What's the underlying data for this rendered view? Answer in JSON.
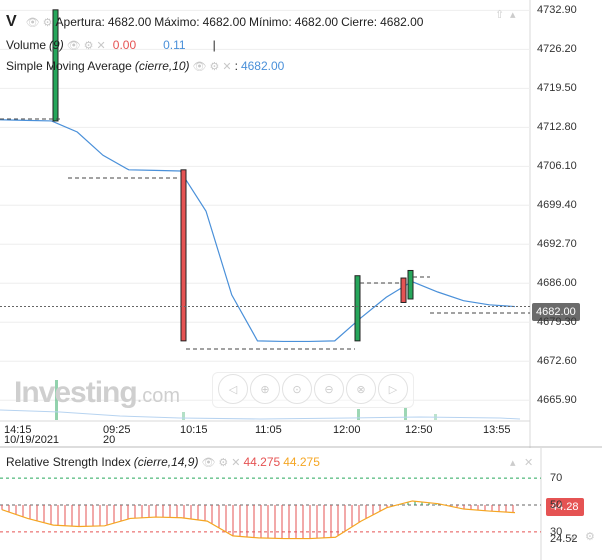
{
  "header": {
    "symbol": "V",
    "ohlc": [
      {
        "label": "Apertura:",
        "value": "4682.00"
      },
      {
        "label": "Máximo:",
        "value": "4682.00"
      },
      {
        "label": "Mínimo:",
        "value": "4682.00"
      },
      {
        "label": "Cierre:",
        "value": "4682.00"
      }
    ]
  },
  "legend": {
    "volume": {
      "name": "Volume",
      "param": "(9)",
      "value1": "0.00",
      "value2": "0.11",
      "sep": "|"
    },
    "sma": {
      "name": "Simple Moving Average",
      "param": "(cierre,10)",
      "sep": ":",
      "value": "4682.00"
    }
  },
  "price_axis": {
    "ticks": [
      "4732.90",
      "4726.20",
      "4719.50",
      "4712.80",
      "4706.10",
      "4699.40",
      "4692.70",
      "4686.00",
      "4679.30",
      "4672.60",
      "4665.90"
    ],
    "current_price": "4682.00"
  },
  "time_axis": {
    "labels": [
      {
        "time": "14:15",
        "date": "10/19/2021"
      },
      {
        "time": "09:25",
        "date": "20"
      },
      {
        "time": "10:15",
        "date": ""
      },
      {
        "time": "11:05",
        "date": ""
      },
      {
        "time": "12:00",
        "date": ""
      },
      {
        "time": "12:50",
        "date": ""
      },
      {
        "time": "13:55",
        "date": ""
      }
    ]
  },
  "watermark": {
    "brand": "Investing",
    "suffix": ".com"
  },
  "rsi": {
    "name": "Relative Strength Index",
    "param": "(cierre,14,9)",
    "value1": "44.275",
    "value2": "44.275",
    "ticks": [
      "70",
      "50",
      "30",
      "24.52"
    ],
    "current": "44.28"
  },
  "nav_buttons": [
    {
      "name": "scroll-left-icon",
      "glyph": "◁"
    },
    {
      "name": "zoom-in-icon",
      "glyph": "⊕"
    },
    {
      "name": "zoom-reset-icon",
      "glyph": "⊙"
    },
    {
      "name": "zoom-out-icon",
      "glyph": "⊖"
    },
    {
      "name": "auto-fit-icon",
      "glyph": "⊗"
    },
    {
      "name": "scroll-right-icon",
      "glyph": "▷"
    }
  ],
  "colors": {
    "up": "#26a65b",
    "down": "#e55353",
    "sma": "#4a90d9",
    "rsi": "#f5a623",
    "grid": "#eeeeee"
  },
  "chart_data": {
    "type": "candlestick",
    "price_range": [
      4662.5,
      4734.0
    ],
    "candles": [
      {
        "time": "14:15",
        "open": 4713.9,
        "high": 4733.0,
        "low": 4713.9,
        "close": 4733.0,
        "color": "up"
      },
      {
        "time": "10:15",
        "open": 4705.5,
        "high": 4705.5,
        "low": 4676.1,
        "close": 4676.1,
        "color": "down"
      },
      {
        "time": "12:00",
        "open": 4676.1,
        "high": 4687.3,
        "low": 4676.1,
        "close": 4687.3,
        "color": "up"
      },
      {
        "time": "12:35",
        "open": 4686.9,
        "high": 4686.9,
        "low": 4682.7,
        "close": 4682.7,
        "color": "down"
      },
      {
        "time": "12:45",
        "open": 4683.3,
        "high": 4688.2,
        "low": 4683.3,
        "close": 4688.2,
        "color": "up"
      }
    ],
    "sma_series": [
      4714.1,
      4714.0,
      4713.9,
      4712.0,
      4708.0,
      4705.5,
      4705.4,
      4705.3,
      4698.4,
      4684.0,
      4676.1,
      4676.0,
      4676.0,
      4676.1,
      4680.0,
      4683.6,
      4686.3,
      4684.5,
      4683.0,
      4682.3,
      4682.0
    ],
    "rsi_series": [
      46.5,
      40.0,
      35.0,
      34.0,
      34.5,
      40.0,
      41.0,
      40.5,
      38.0,
      27.0,
      25.5,
      25.0,
      25.0,
      26.0,
      38.0,
      48.0,
      53.0,
      51.0,
      47.0,
      45.5,
      44.3
    ]
  }
}
